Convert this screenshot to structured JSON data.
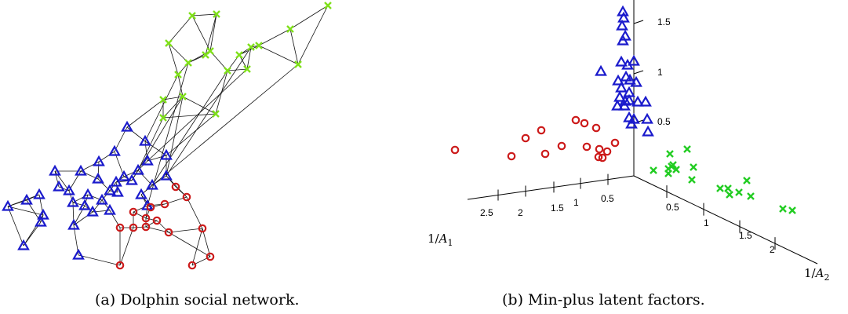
{
  "figure": {
    "panel_a": {
      "caption": "(a) Dolphin social network."
    },
    "panel_b": {
      "caption": "(b) Min-plus latent factors."
    }
  },
  "colors": {
    "group_triangle": "#1a1acc",
    "group_circle": "#cc1a1a",
    "group_cross": "#7fe01a",
    "group_cross_b": "#22cc22"
  },
  "chart_data": [
    {
      "type": "network",
      "marker_legend": {
        "triangle": "blue triangles",
        "circle": "red circles",
        "cross": "green crosses"
      }
    },
    {
      "type": "scatter",
      "axes": {
        "vertical": {
          "ticks": [
            "0.5",
            "1",
            "1.5"
          ],
          "values": [
            0.5,
            1,
            1.5
          ]
        },
        "left": {
          "label": "1/A1",
          "ticks": [
            "0.5",
            "1",
            "1.5",
            "2",
            "2.5"
          ],
          "values": [
            0.5,
            1,
            1.5,
            2,
            2.5
          ]
        },
        "right": {
          "label": "1/A2",
          "ticks": [
            "0.5",
            "1",
            "1.5",
            "2"
          ],
          "values": [
            0.5,
            1,
            1.5,
            2
          ]
        }
      },
      "series": [
        {
          "marker": "triangle",
          "color": "blue"
        },
        {
          "marker": "circle",
          "color": "red"
        },
        {
          "marker": "cross",
          "color": "green"
        }
      ]
    }
  ]
}
